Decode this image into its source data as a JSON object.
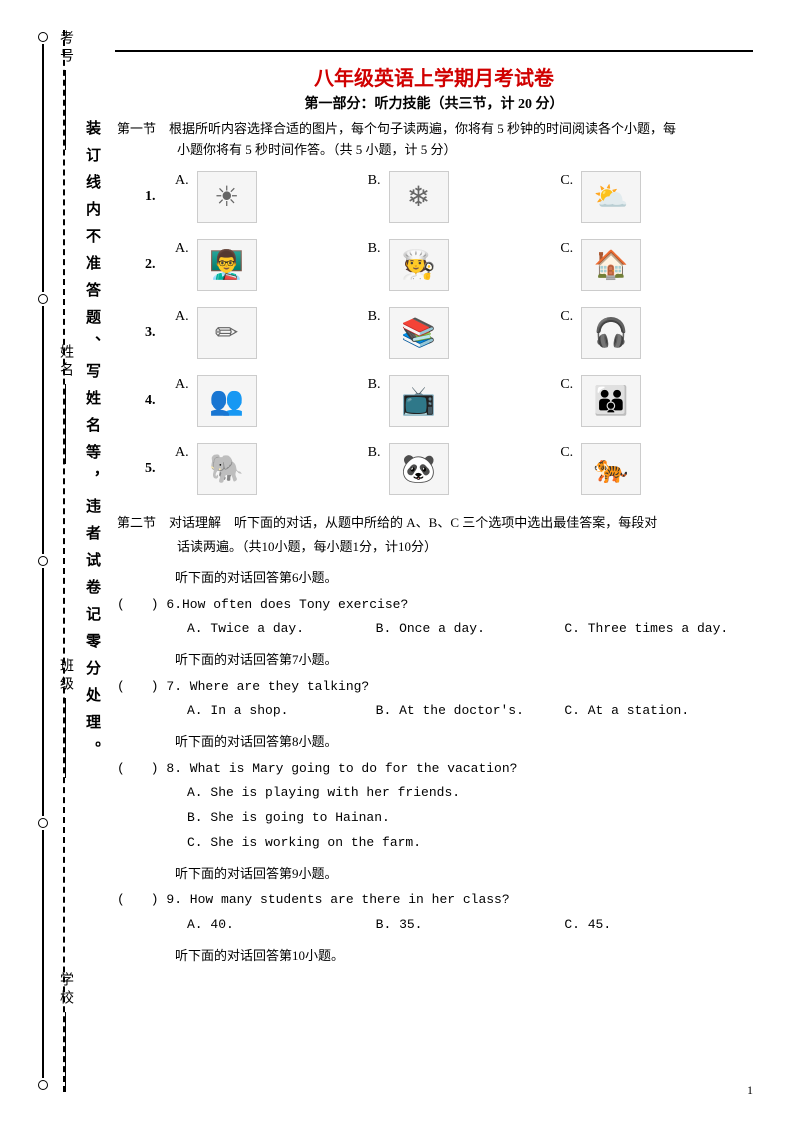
{
  "margin": {
    "fields": [
      "学校",
      "班级",
      "姓名",
      "考号"
    ],
    "warning": "装订线内不准答题、写姓名等，违者试卷记零分处理。"
  },
  "title": "八年级英语上学期月考试卷",
  "subtitle": "第一部分：听力技能（共三节，计 20 分）",
  "section1": {
    "label": "第一节",
    "text1": "根据所听内容选择合适的图片，每个句子读两遍，你将有 5 秒钟的时间阅读各个小题，每",
    "text2": "小题你将有 5 秒时间作答。（共 5 小题，计 5 分）",
    "rows": [
      {
        "num": "1.",
        "a": "☀",
        "b": "❄",
        "c": "⛅"
      },
      {
        "num": "2.",
        "a": "👨‍🏫",
        "b": "🧑‍🍳",
        "c": "🏠"
      },
      {
        "num": "3.",
        "a": "✏",
        "b": "📚",
        "c": "🎧"
      },
      {
        "num": "4.",
        "a": "👥",
        "b": "📺",
        "c": "👪"
      },
      {
        "num": "5.",
        "a": "🐘",
        "b": "🐼",
        "c": "🐅"
      }
    ]
  },
  "section2": {
    "label": "第二节",
    "intro1": "对话理解　听下面的对话，从题中所给的 A、B、C 三个选项中选出最佳答案，每段对",
    "intro2": "话读两遍。（共10小题，每小题1分，计10分）",
    "sub6": "听下面的对话回答第6小题。",
    "q6": "(　　) 6.How often does Tony exercise?",
    "q6a": "A. Twice a day.",
    "q6b": "B. Once a day.",
    "q6c": "C. Three times a day.",
    "sub7": "听下面的对话回答第7小题。",
    "q7": "(　　) 7. Where are they talking?",
    "q7a": "A. In a shop.",
    "q7b": "B. At the doctor's.",
    "q7c": "C. At a station.",
    "sub8": "听下面的对话回答第8小题。",
    "q8": "(　　) 8. What is Mary going to do for the vacation?",
    "q8a": "A. She is playing with her friends.",
    "q8b": "B. She is going to Hainan.",
    "q8c": "C. She is working on the farm.",
    "sub9": "听下面的对话回答第9小题。",
    "q9": "(　　) 9. How many students are there in her class?",
    "q9a": "A. 40.",
    "q9b": "B. 35.",
    "q9c": "C. 45.",
    "sub10": "听下面的对话回答第10小题。"
  },
  "pageNum": "1"
}
